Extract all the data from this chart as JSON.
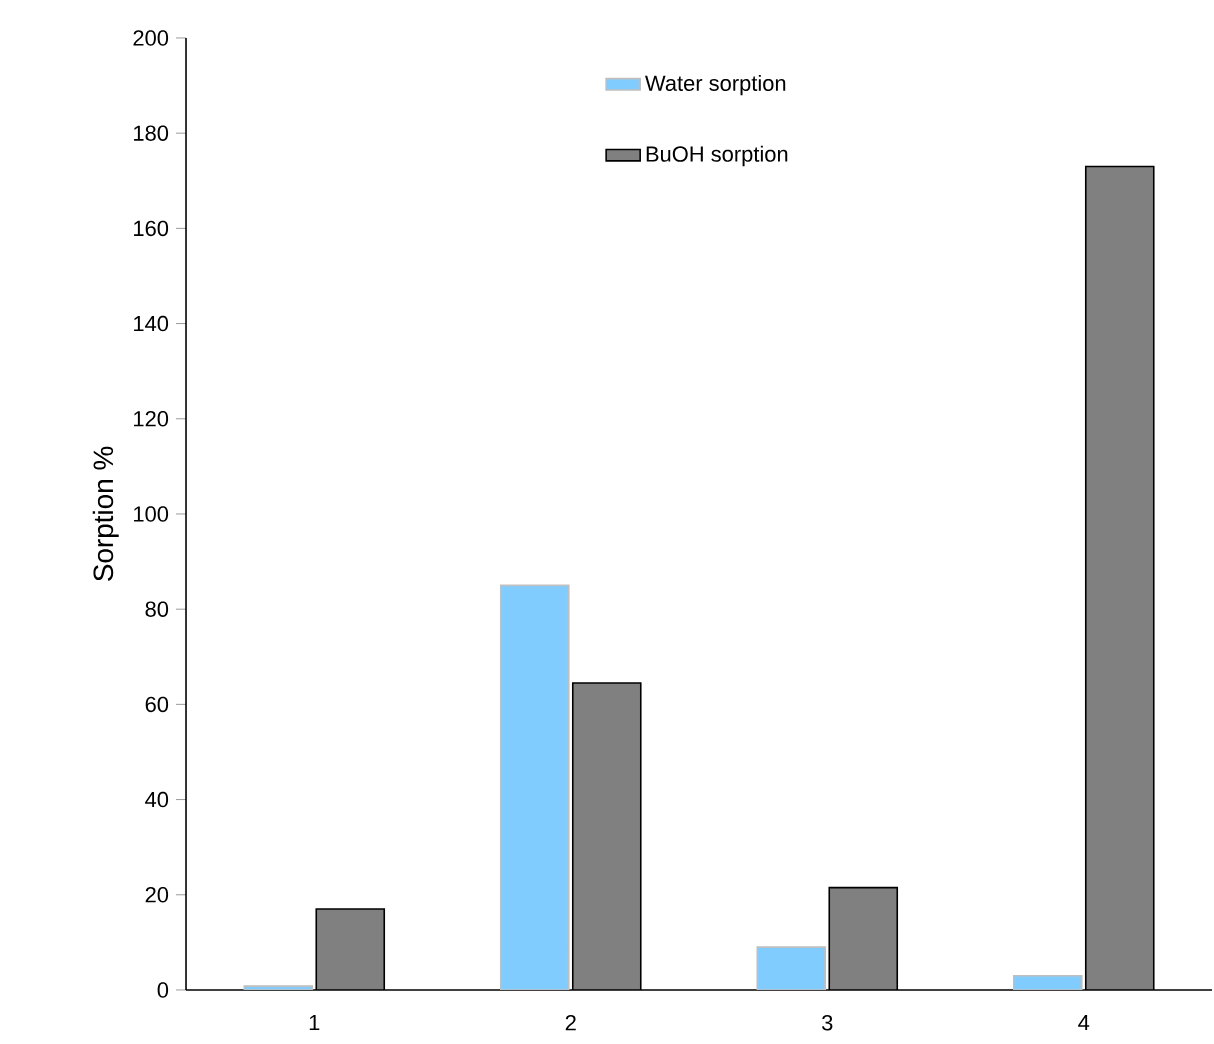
{
  "chart_data": {
    "type": "bar",
    "ylabel": "Sorption %",
    "categories": [
      "1",
      "2",
      "3",
      "4"
    ],
    "series": [
      {
        "name": "Water sorption",
        "color": "#80ccff",
        "values": [
          0.8,
          85,
          9,
          3
        ]
      },
      {
        "name": "BuOH sorption",
        "color": "#808080",
        "values": [
          17,
          64.5,
          21.5,
          173
        ]
      }
    ],
    "ylim": [
      0,
      200
    ],
    "yticks": [
      0,
      20,
      40,
      60,
      80,
      100,
      120,
      140,
      160,
      180,
      200
    ],
    "legend": "top",
    "grid": false
  }
}
